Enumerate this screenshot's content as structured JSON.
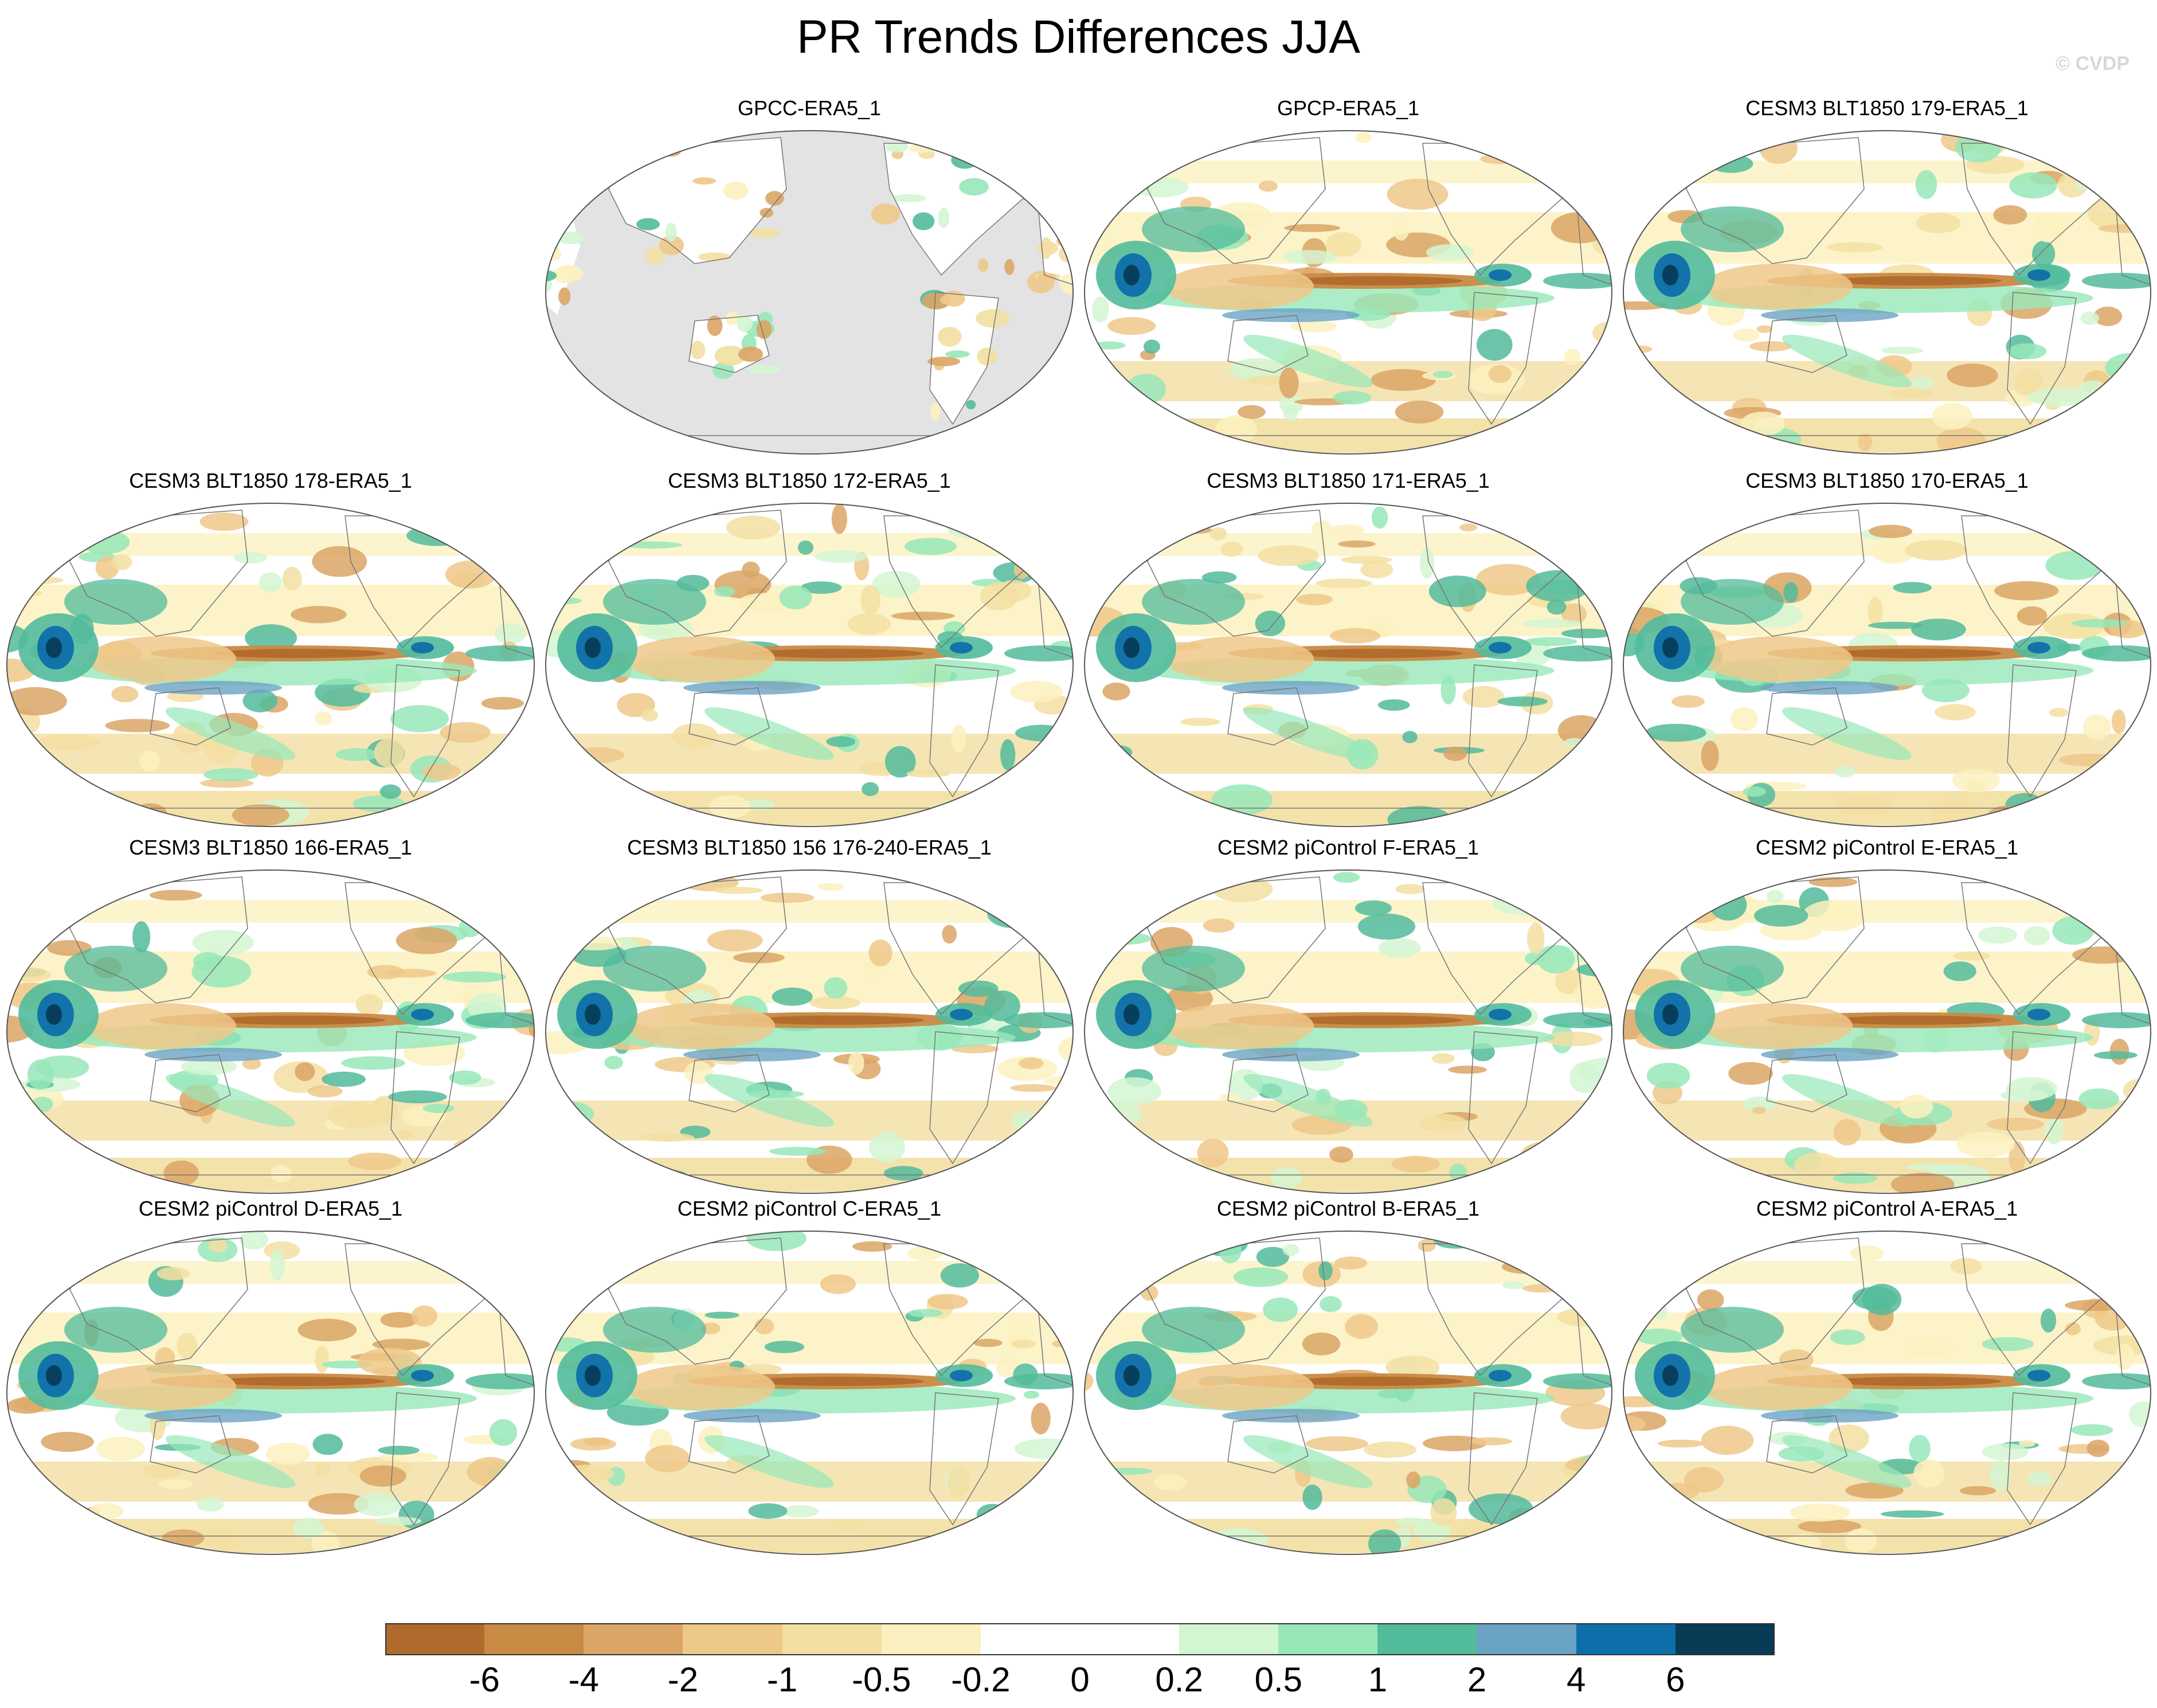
{
  "title": "PR Trends Differences JJA",
  "credit": "© CVDP",
  "panels": [
    {
      "label": "GPCC-ERA5_1",
      "type": "land"
    },
    {
      "label": "GPCP-ERA5_1",
      "type": "full"
    },
    {
      "label": "CESM3 BLT1850 179-ERA5_1",
      "type": "full"
    },
    {
      "label": "CESM3 BLT1850 178-ERA5_1",
      "type": "full"
    },
    {
      "label": "CESM3 BLT1850 172-ERA5_1",
      "type": "full"
    },
    {
      "label": "CESM3 BLT1850 171-ERA5_1",
      "type": "full"
    },
    {
      "label": "CESM3 BLT1850 170-ERA5_1",
      "type": "full"
    },
    {
      "label": "CESM3 BLT1850 166-ERA5_1",
      "type": "full"
    },
    {
      "label": "CESM3 BLT1850 156 176-240-ERA5_1",
      "type": "full"
    },
    {
      "label": "CESM2 piControl F-ERA5_1",
      "type": "full"
    },
    {
      "label": "CESM2 piControl E-ERA5_1",
      "type": "full"
    },
    {
      "label": "CESM2 piControl D-ERA5_1",
      "type": "full"
    },
    {
      "label": "CESM2 piControl C-ERA5_1",
      "type": "full"
    },
    {
      "label": "CESM2 piControl B-ERA5_1",
      "type": "full"
    },
    {
      "label": "CESM2 piControl A-ERA5_1",
      "type": "full"
    }
  ],
  "colorbar": {
    "colors": [
      "#b06a2b",
      "#c98a44",
      "#dba565",
      "#eec889",
      "#f3dfa2",
      "#fbf1c0",
      "#ffffff",
      "#ffffff",
      "#d3f6d2",
      "#97e8b9",
      "#52bb9b",
      "#6ba3c4",
      "#0e6eaa",
      "#073b56"
    ],
    "labels": [
      "-6",
      "-4",
      "-2",
      "-1",
      "-0.5",
      "-0.2",
      "0",
      "0.2",
      "0.5",
      "1",
      "2",
      "4",
      "6"
    ]
  }
}
